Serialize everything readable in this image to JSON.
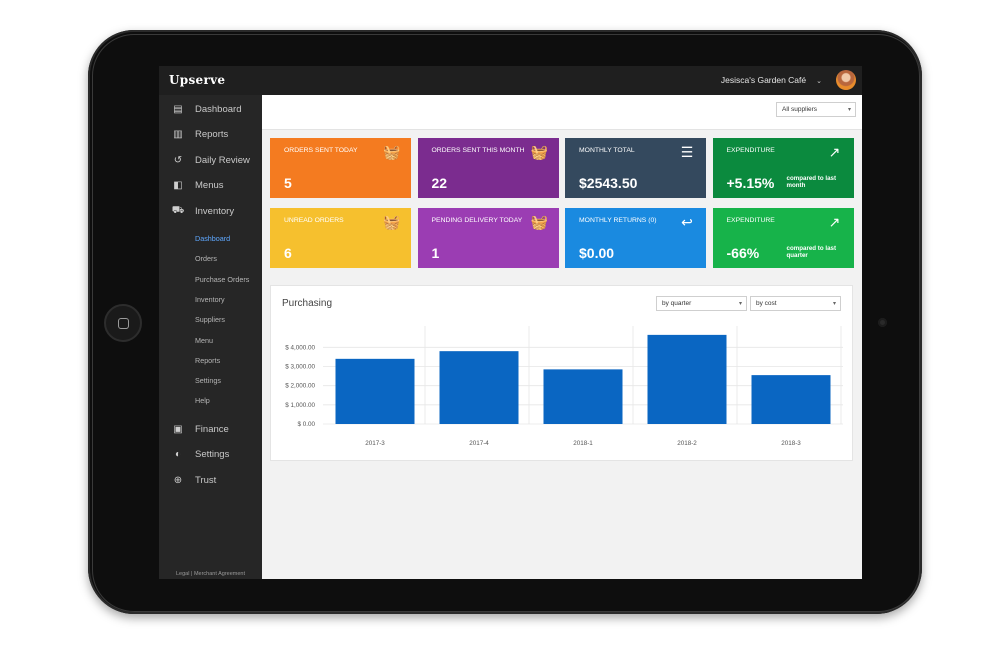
{
  "app": {
    "logo": "Upserve",
    "account_name": "Jesisca's Garden Café",
    "account_chevron": "⌄"
  },
  "sidebar": {
    "items": [
      {
        "label": "Dashboard",
        "icon": "dashboard-icon",
        "glyph": "▤"
      },
      {
        "label": "Reports",
        "icon": "bar-chart-icon",
        "glyph": "▥"
      },
      {
        "label": "Daily Review",
        "icon": "history-icon",
        "glyph": "↺"
      },
      {
        "label": "Menus",
        "icon": "book-icon",
        "glyph": "◧"
      },
      {
        "label": "Inventory",
        "icon": "truck-icon",
        "glyph": "⛟"
      }
    ],
    "sub_items": [
      "Dashboard",
      "Orders",
      "Purchase Orders",
      "Inventory",
      "Suppliers",
      "Menu",
      "Reports",
      "Settings",
      "Help"
    ],
    "active_sub": "Dashboard",
    "bottom_items": [
      {
        "label": "Finance",
        "icon": "dollar-icon",
        "glyph": "▣"
      },
      {
        "label": "Settings",
        "icon": "toggle-icon",
        "glyph": "◐"
      },
      {
        "label": "Trust",
        "icon": "crosshair-icon",
        "glyph": "⊕"
      }
    ],
    "legal": "Legal | Merchant Agreement"
  },
  "filters": {
    "supplier": "All suppliers"
  },
  "cards": [
    {
      "label": "ORDERS SENT TODAY",
      "value": "5",
      "color": "#f47b20",
      "icon": "basket-send-icon",
      "glyph": "🧺",
      "note": ""
    },
    {
      "label": "ORDERS SENT THIS MONTH",
      "value": "22",
      "color": "#7b2c8f",
      "icon": "basket-send-icon",
      "glyph": "🧺",
      "note": ""
    },
    {
      "label": "MONTHLY TOTAL",
      "value": "$2543.50",
      "color": "#34495e",
      "icon": "list-icon",
      "glyph": "☰",
      "note": ""
    },
    {
      "label": "EXPENDITURE",
      "value": "+5.15%",
      "color": "#0b8a3e",
      "icon": "trend-icon",
      "glyph": "↗",
      "note": "compared to last month"
    },
    {
      "label": "UNREAD ORDERS",
      "value": "6",
      "color": "#f6c02e",
      "icon": "basket-icon",
      "glyph": "🧺",
      "note": ""
    },
    {
      "label": "PENDING DELIVERY TODAY",
      "value": "1",
      "color": "#9b3db3",
      "icon": "basket-clock-icon",
      "glyph": "🧺",
      "note": ""
    },
    {
      "label": "MONTHLY RETURNS (0)",
      "value": "$0.00",
      "color": "#1a8ae0",
      "icon": "reply-icon",
      "glyph": "↩",
      "note": ""
    },
    {
      "label": "EXPENDITURE",
      "value": "-66%",
      "color": "#17b34a",
      "icon": "trend-icon",
      "glyph": "↗",
      "note": "compared to last quarter"
    }
  ],
  "purchasing": {
    "title": "Purchasing",
    "period_select": "by quarter",
    "metric_select": "by cost"
  },
  "chart_data": {
    "type": "bar",
    "categories": [
      "2017-3",
      "2017-4",
      "2018-1",
      "2018-2",
      "2018-3"
    ],
    "values": [
      3400,
      3800,
      2850,
      4650,
      2550
    ],
    "yticks": [
      "$ 0.00",
      "$ 1,000.00",
      "$ 2,000.00",
      "$ 3,000.00",
      "$ 4,000.00"
    ],
    "ylim": [
      0,
      4800
    ],
    "color": "#0a66c2",
    "grid": true
  }
}
